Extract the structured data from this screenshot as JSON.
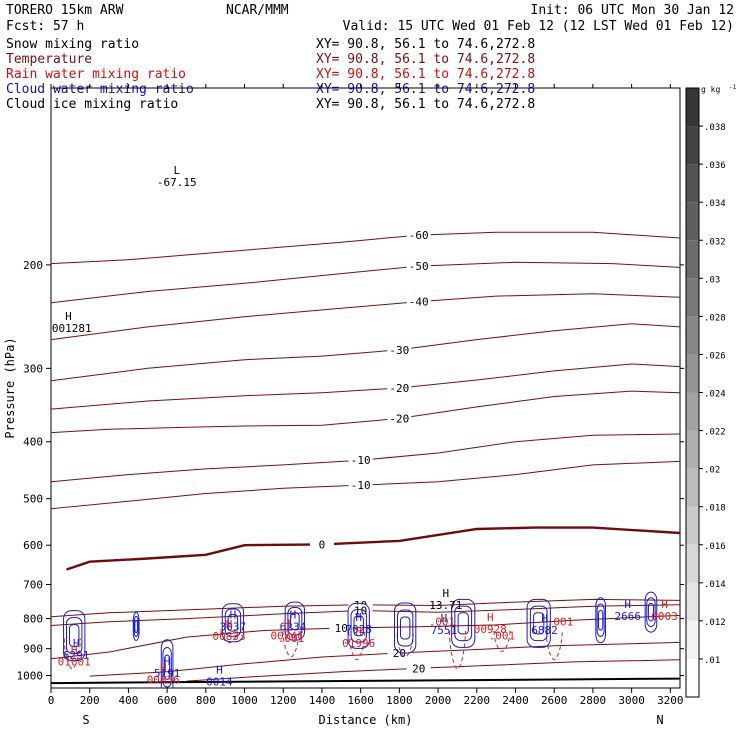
{
  "header": {
    "model": "TORERO  15km ARW",
    "center": "NCAR/MMM",
    "init": "Init: 06 UTC Mon 30 Jan 12",
    "fcst": "Fcst:   57 h",
    "valid": "Valid: 15 UTC Wed 01 Feb 12 (12 LST Wed 01 Feb 12)"
  },
  "fields": [
    {
      "name": "Snow mixing ratio",
      "xy": "XY=  90.8, 56.1 to  74.6,272.8",
      "color": "#000000"
    },
    {
      "name": "Temperature",
      "xy": "XY=  90.8, 56.1 to  74.6,272.8",
      "color": "#7a1010"
    },
    {
      "name": "Rain water mixing ratio",
      "xy": "XY=  90.8, 56.1 to  74.6,272.8",
      "color": "#cc1111"
    },
    {
      "name": "Cloud water mixing ratio",
      "xy": "XY=  90.8, 56.1 to  74.6,272.8",
      "color": "#1111bb"
    },
    {
      "name": "Cloud ice mixing ratio",
      "xy": "XY=  90.8, 56.1 to  74.6,272.8",
      "color": "#000000"
    }
  ],
  "colors": {
    "temperature": "#7a1010",
    "freezing": "#6e0c0c",
    "rain": "#dd2222",
    "cloud_water": "#1a1acc",
    "ground": "#000000"
  },
  "chart_data": {
    "type": "line",
    "xlabel": "Distance (km)",
    "ylabel": "Pressure (hPa)",
    "xlim": [
      0,
      3250
    ],
    "ylim": [
      1050,
      100
    ],
    "y_scale": "log",
    "x_ticks": [
      0,
      200,
      400,
      600,
      800,
      1000,
      1200,
      1400,
      1600,
      1800,
      2000,
      2200,
      2400,
      2600,
      2800,
      3000,
      3200
    ],
    "y_ticks": [
      200,
      300,
      400,
      500,
      600,
      700,
      800,
      900,
      1000
    ],
    "x_end_labels": {
      "left": "S",
      "right": "N"
    },
    "colorbar": {
      "unit": "g kg",
      "unit_exp": "-1",
      "ticks": [
        ".01",
        ".012",
        ".014",
        ".016",
        ".018",
        ".02",
        ".022",
        ".024",
        ".026",
        ".028",
        ".03",
        ".032",
        ".034",
        ".036",
        ".038"
      ]
    },
    "isotherms": [
      {
        "label": "-60",
        "points": [
          [
            0,
            199
          ],
          [
            400,
            196
          ],
          [
            900,
            190
          ],
          [
            1500,
            183
          ],
          [
            1900,
            178
          ],
          [
            2300,
            176
          ],
          [
            2800,
            176
          ],
          [
            3250,
            180
          ]
        ]
      },
      {
        "label": "-50",
        "points": [
          [
            0,
            232
          ],
          [
            500,
            222
          ],
          [
            1000,
            215
          ],
          [
            1500,
            207
          ],
          [
            1900,
            201
          ],
          [
            2400,
            198
          ],
          [
            2900,
            199
          ],
          [
            3250,
            202
          ]
        ]
      },
      {
        "label": "-40",
        "points": [
          [
            0,
            268
          ],
          [
            500,
            255
          ],
          [
            1000,
            245
          ],
          [
            1500,
            237
          ],
          [
            1900,
            231
          ],
          [
            2300,
            226
          ],
          [
            2800,
            224
          ],
          [
            3250,
            227
          ]
        ]
      },
      {
        "label": "-30",
        "points": [
          [
            0,
            315
          ],
          [
            500,
            300
          ],
          [
            1000,
            290
          ],
          [
            1400,
            286
          ],
          [
            1800,
            279
          ],
          [
            2200,
            268
          ],
          [
            2600,
            259
          ],
          [
            3000,
            252
          ],
          [
            3250,
            255
          ]
        ]
      },
      {
        "label": "-20",
        "points": [
          [
            0,
            352
          ],
          [
            500,
            341
          ],
          [
            1000,
            334
          ],
          [
            1400,
            330
          ],
          [
            1800,
            324
          ],
          [
            2200,
            314
          ],
          [
            2600,
            303
          ],
          [
            3000,
            295
          ],
          [
            3250,
            298
          ]
        ]
      },
      {
        "label": "-20",
        "points": [
          [
            0,
            386
          ],
          [
            300,
            381
          ],
          [
            700,
            378
          ],
          [
            1000,
            376
          ],
          [
            1400,
            375
          ],
          [
            1800,
            365
          ],
          [
            2200,
            349
          ],
          [
            2600,
            335
          ],
          [
            3000,
            328
          ],
          [
            3250,
            330
          ]
        ]
      },
      {
        "label": "-10",
        "points": [
          [
            0,
            468
          ],
          [
            400,
            455
          ],
          [
            800,
            445
          ],
          [
            1200,
            438
          ],
          [
            1600,
            430
          ],
          [
            2000,
            418
          ],
          [
            2400,
            400
          ],
          [
            2800,
            390
          ],
          [
            3250,
            388
          ]
        ]
      },
      {
        "label": "-10",
        "points": [
          [
            0,
            520
          ],
          [
            400,
            505
          ],
          [
            800,
            490
          ],
          [
            1200,
            480
          ],
          [
            1600,
            474
          ],
          [
            2000,
            468
          ],
          [
            2400,
            455
          ],
          [
            2800,
            438
          ],
          [
            3250,
            432
          ]
        ]
      },
      {
        "label": "0",
        "points": [
          [
            80,
            660
          ],
          [
            200,
            640
          ],
          [
            500,
            632
          ],
          [
            800,
            623
          ],
          [
            1000,
            600
          ],
          [
            1400,
            598
          ],
          [
            1800,
            590
          ],
          [
            2200,
            563
          ],
          [
            2500,
            560
          ],
          [
            2800,
            560
          ],
          [
            3250,
            572
          ]
        ]
      },
      {
        "label": "10",
        "points": [
          [
            0,
            794
          ],
          [
            300,
            782
          ],
          [
            700,
            773
          ],
          [
            1200,
            762
          ],
          [
            1600,
            758
          ],
          [
            2000,
            760
          ],
          [
            2400,
            750
          ],
          [
            2800,
            742
          ],
          [
            3250,
            745
          ]
        ]
      },
      {
        "label": "10",
        "points": [
          [
            0,
            822
          ],
          [
            300,
            810
          ],
          [
            700,
            800
          ],
          [
            1200,
            785
          ],
          [
            1600,
            775
          ],
          [
            2000,
            780
          ],
          [
            2400,
            772
          ],
          [
            2800,
            762
          ],
          [
            3250,
            758
          ]
        ]
      },
      {
        "label": "10",
        "points": [
          [
            0,
            936
          ],
          [
            300,
            912
          ],
          [
            700,
            860
          ],
          [
            1100,
            838
          ],
          [
            1500,
            830
          ],
          [
            1900,
            826
          ],
          [
            2300,
            820
          ],
          [
            2700,
            805
          ],
          [
            3250,
            790
          ]
        ]
      },
      {
        "label": "20",
        "points": [
          [
            200,
            1002
          ],
          [
            600,
            985
          ],
          [
            1000,
            955
          ],
          [
            1400,
            930
          ],
          [
            1800,
            915
          ],
          [
            2200,
            903
          ],
          [
            2600,
            890
          ],
          [
            3250,
            878
          ]
        ]
      },
      {
        "label": "20",
        "points": [
          [
            700,
            1022
          ],
          [
            1100,
            1002
          ],
          [
            1500,
            985
          ],
          [
            1900,
            972
          ],
          [
            2300,
            960
          ],
          [
            2700,
            948
          ],
          [
            3250,
            940
          ]
        ]
      }
    ],
    "extrema": [
      {
        "kind": "L",
        "label": "-67.15",
        "x": 650,
        "p": 140,
        "field": "temperature"
      },
      {
        "kind": "H",
        "label": ".001281",
        "x": 90,
        "p": 248,
        "field": "snow"
      },
      {
        "kind": "H",
        "label": "13.71",
        "x": 2040,
        "p": 735,
        "field": "temperature"
      },
      {
        "kind": "H",
        "label": "6291",
        "x": 130,
        "p": 895,
        "field": "cloud_water"
      },
      {
        "kind": "H",
        "label": "5191",
        "x": 600,
        "p": 960,
        "field": "cloud_water"
      },
      {
        "kind": "H",
        "label": "0014",
        "x": 870,
        "p": 992,
        "field": "cloud_water"
      },
      {
        "kind": "H",
        "label": "3037",
        "x": 940,
        "p": 800,
        "field": "cloud_water"
      },
      {
        "kind": "H",
        "label": "6234",
        "x": 1250,
        "p": 800,
        "field": "cloud_water"
      },
      {
        "kind": "H",
        "label": "7028",
        "x": 1590,
        "p": 808,
        "field": "cloud_water"
      },
      {
        "kind": "H",
        "label": "7551",
        "x": 2030,
        "p": 810,
        "field": "cloud_water"
      },
      {
        "kind": "H",
        "label": "6882",
        "x": 2550,
        "p": 810,
        "field": "cloud_water"
      },
      {
        "kind": "H",
        "label": "2666",
        "x": 2980,
        "p": 768,
        "field": "cloud_water"
      },
      {
        "kind": "H",
        "label": "01001",
        "x": 120,
        "p": 918,
        "field": "rain"
      },
      {
        "kind": "H",
        "label": "00836",
        "x": 580,
        "p": 985,
        "field": "rain"
      },
      {
        "kind": "H",
        "label": "00833",
        "x": 920,
        "p": 830,
        "field": "rain"
      },
      {
        "kind": "H",
        "label": "00747",
        "x": 1220,
        "p": 828,
        "field": "rain"
      },
      {
        "kind": "H",
        "label": "01996",
        "x": 1590,
        "p": 853,
        "field": "rain"
      },
      {
        "kind": "H",
        "label": "00928",
        "x": 2270,
        "p": 808,
        "field": "rain"
      },
      {
        "kind": "H",
        "label": "0003",
        "x": 3170,
        "p": 768,
        "field": "rain"
      }
    ],
    "minor_labels": [
      {
        "label": ".001",
        "x": 1240,
        "p": 877,
        "field": "rain"
      },
      {
        "label": ".001",
        "x": 2020,
        "p": 822,
        "field": "rain"
      },
      {
        "label": ".001",
        "x": 2330,
        "p": 868,
        "field": "rain"
      },
      {
        "label": ".001",
        "x": 2630,
        "p": 822,
        "field": "rain"
      }
    ],
    "cloud_water_cells": [
      {
        "x": 120,
        "p": 855,
        "w": 110,
        "h": 50
      },
      {
        "x": 440,
        "p": 825,
        "w": 30,
        "h": 28
      },
      {
        "x": 600,
        "p": 968,
        "w": 60,
        "h": 55
      },
      {
        "x": 940,
        "p": 813,
        "w": 110,
        "h": 38
      },
      {
        "x": 1260,
        "p": 808,
        "w": 100,
        "h": 38
      },
      {
        "x": 1590,
        "p": 823,
        "w": 110,
        "h": 45
      },
      {
        "x": 1830,
        "p": 830,
        "w": 110,
        "h": 50
      },
      {
        "x": 2130,
        "p": 815,
        "w": 120,
        "h": 48
      },
      {
        "x": 2520,
        "p": 815,
        "w": 120,
        "h": 48
      },
      {
        "x": 2840,
        "p": 805,
        "w": 50,
        "h": 45
      },
      {
        "x": 3100,
        "p": 780,
        "w": 60,
        "h": 40
      }
    ],
    "rain_shafts": [
      {
        "x": 110,
        "p_top": 865,
        "p_bot": 975
      },
      {
        "x": 920,
        "p_top": 840,
        "p_bot": 880
      },
      {
        "x": 1240,
        "p_top": 840,
        "p_bot": 930
      },
      {
        "x": 1580,
        "p_top": 842,
        "p_bot": 940
      },
      {
        "x": 1830,
        "p_top": 848,
        "p_bot": 930
      },
      {
        "x": 2100,
        "p_top": 840,
        "p_bot": 975
      },
      {
        "x": 2330,
        "p_top": 840,
        "p_bot": 910
      },
      {
        "x": 2600,
        "p_top": 840,
        "p_bot": 940
      }
    ],
    "ground": [
      [
        0,
        1030
      ],
      [
        3250,
        1012
      ]
    ]
  }
}
